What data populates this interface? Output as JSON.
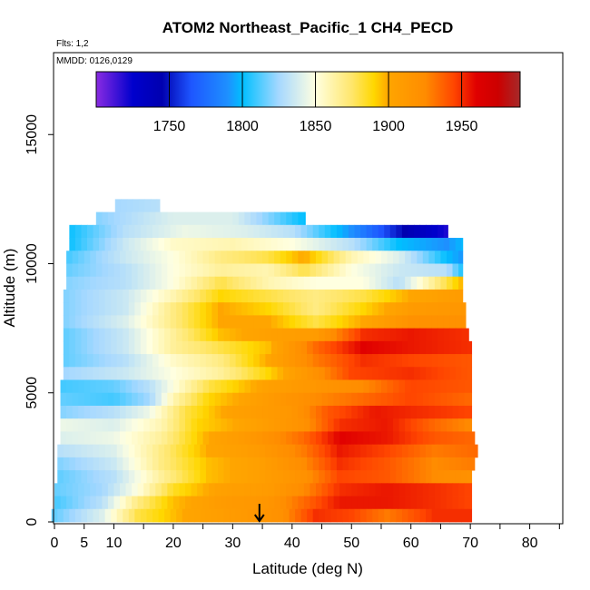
{
  "chart_data": {
    "type": "heatmap",
    "title": "ATOM2 Northeast_Pacific_1 CH4_PECD",
    "annotations": {
      "flights": "Flts: 1,2",
      "dates": "MMDD: 0126,0129"
    },
    "xlabel": "Latitude (deg N)",
    "ylabel": "Altitude (m)",
    "xlim": [
      0,
      85
    ],
    "ylim": [
      0,
      17500
    ],
    "x_ticks": [
      0,
      5,
      10,
      15,
      20,
      25,
      30,
      35,
      40,
      45,
      50,
      55,
      60,
      65,
      70,
      75,
      80,
      85
    ],
    "x_tick_labels": [
      "0",
      "5",
      "10",
      "20",
      "30",
      "40",
      "50",
      "60",
      "70",
      "80"
    ],
    "x_tick_label_values": [
      0,
      5,
      10,
      20,
      30,
      40,
      50,
      60,
      70,
      80
    ],
    "y_ticks": [
      0,
      5000,
      10000,
      15000
    ],
    "y_tick_labels": [
      "0",
      "5000",
      "10000",
      "15000"
    ],
    "marker": {
      "type": "arrow",
      "latitude": 34.5,
      "altitude": 0
    },
    "colorbar": {
      "range": [
        1700,
        1990
      ],
      "ticks": [
        1750,
        1800,
        1850,
        1900,
        1950
      ],
      "tick_labels": [
        "1750",
        "1800",
        "1850",
        "1900",
        "1950"
      ],
      "stops": [
        [
          1700,
          "#8a2be2"
        ],
        [
          1725,
          "#0000cd"
        ],
        [
          1745,
          "#0000b0"
        ],
        [
          1765,
          "#1e56ff"
        ],
        [
          1790,
          "#1e90ff"
        ],
        [
          1800,
          "#00bfff"
        ],
        [
          1825,
          "#a6d8ff"
        ],
        [
          1850,
          "#ffffe0"
        ],
        [
          1875,
          "#ffe66b"
        ],
        [
          1890,
          "#ffd700"
        ],
        [
          1900,
          "#ffa500"
        ],
        [
          1925,
          "#ff8c00"
        ],
        [
          1945,
          "#ff4500"
        ],
        [
          1960,
          "#e00000"
        ],
        [
          1975,
          "#cc0000"
        ],
        [
          1990,
          "#a52a2a"
        ]
      ]
    },
    "bands": [
      {
        "alt": 12000,
        "lat_min": 10.2,
        "lat_max": 17.7,
        "anchors": [
          [
            10,
            1825
          ],
          [
            18,
            1830
          ]
        ]
      },
      {
        "alt": 11500,
        "lat_min": 7.0,
        "lat_max": 42.2,
        "anchors": [
          [
            7,
            1820
          ],
          [
            20,
            1840
          ],
          [
            30,
            1840
          ],
          [
            36,
            1820
          ],
          [
            42,
            1800
          ]
        ]
      },
      {
        "alt": 11000,
        "lat_min": 2.5,
        "lat_max": 66.2,
        "anchors": [
          [
            2,
            1800
          ],
          [
            12,
            1830
          ],
          [
            22,
            1845
          ],
          [
            32,
            1840
          ],
          [
            40,
            1830
          ],
          [
            50,
            1790
          ],
          [
            60,
            1740
          ],
          [
            66,
            1720
          ]
        ]
      },
      {
        "alt": 10500,
        "lat_min": 2.5,
        "lat_max": 68.7,
        "anchors": [
          [
            2,
            1800
          ],
          [
            12,
            1835
          ],
          [
            20,
            1855
          ],
          [
            30,
            1860
          ],
          [
            40,
            1850
          ],
          [
            50,
            1830
          ],
          [
            58,
            1800
          ],
          [
            66,
            1790
          ],
          [
            69,
            1800
          ]
        ]
      },
      {
        "alt": 10000,
        "lat_min": 2.0,
        "lat_max": 68.7,
        "anchors": [
          [
            2,
            1810
          ],
          [
            12,
            1835
          ],
          [
            20,
            1850
          ],
          [
            28,
            1870
          ],
          [
            36,
            1880
          ],
          [
            42,
            1900
          ],
          [
            50,
            1860
          ],
          [
            58,
            1840
          ],
          [
            66,
            1800
          ],
          [
            69,
            1790
          ]
        ]
      },
      {
        "alt": 9500,
        "lat_min": 2.0,
        "lat_max": 68.7,
        "anchors": [
          [
            2,
            1815
          ],
          [
            12,
            1830
          ],
          [
            20,
            1850
          ],
          [
            28,
            1865
          ],
          [
            36,
            1860
          ],
          [
            42,
            1880
          ],
          [
            50,
            1850
          ],
          [
            58,
            1835
          ],
          [
            66,
            1830
          ],
          [
            69,
            1800
          ]
        ]
      },
      {
        "alt": 9000,
        "lat_min": 2.0,
        "lat_max": 68.7,
        "anchors": [
          [
            2,
            1820
          ],
          [
            12,
            1830
          ],
          [
            20,
            1850
          ],
          [
            28,
            1880
          ],
          [
            36,
            1860
          ],
          [
            44,
            1850
          ],
          [
            52,
            1850
          ],
          [
            58,
            1830
          ],
          [
            66,
            1880
          ],
          [
            69,
            1900
          ]
        ]
      },
      {
        "alt": 8500,
        "lat_min": 1.5,
        "lat_max": 68.7,
        "anchors": [
          [
            2,
            1820
          ],
          [
            12,
            1835
          ],
          [
            20,
            1860
          ],
          [
            28,
            1890
          ],
          [
            36,
            1880
          ],
          [
            44,
            1870
          ],
          [
            52,
            1880
          ],
          [
            60,
            1900
          ],
          [
            69,
            1910
          ]
        ]
      },
      {
        "alt": 8000,
        "lat_min": 1.5,
        "lat_max": 69.2,
        "anchors": [
          [
            2,
            1820
          ],
          [
            12,
            1835
          ],
          [
            20,
            1870
          ],
          [
            28,
            1900
          ],
          [
            36,
            1890
          ],
          [
            44,
            1870
          ],
          [
            52,
            1890
          ],
          [
            60,
            1910
          ],
          [
            69,
            1915
          ]
        ]
      },
      {
        "alt": 7500,
        "lat_min": 1.5,
        "lat_max": 69.2,
        "anchors": [
          [
            2,
            1820
          ],
          [
            12,
            1840
          ],
          [
            20,
            1870
          ],
          [
            28,
            1900
          ],
          [
            36,
            1900
          ],
          [
            44,
            1880
          ],
          [
            52,
            1900
          ],
          [
            60,
            1920
          ],
          [
            69,
            1920
          ]
        ]
      },
      {
        "alt": 7000,
        "lat_min": 1.5,
        "lat_max": 69.7,
        "anchors": [
          [
            2,
            1815
          ],
          [
            12,
            1835
          ],
          [
            20,
            1865
          ],
          [
            28,
            1895
          ],
          [
            36,
            1905
          ],
          [
            44,
            1910
          ],
          [
            52,
            1950
          ],
          [
            60,
            1955
          ],
          [
            69,
            1950
          ]
        ]
      },
      {
        "alt": 6500,
        "lat_min": 1.5,
        "lat_max": 70.2,
        "anchors": [
          [
            2,
            1815
          ],
          [
            12,
            1835
          ],
          [
            20,
            1865
          ],
          [
            28,
            1880
          ],
          [
            36,
            1895
          ],
          [
            44,
            1935
          ],
          [
            52,
            1960
          ],
          [
            60,
            1955
          ],
          [
            70,
            1950
          ]
        ]
      },
      {
        "alt": 6000,
        "lat_min": 1.5,
        "lat_max": 70.2,
        "anchors": [
          [
            2,
            1815
          ],
          [
            12,
            1830
          ],
          [
            20,
            1855
          ],
          [
            28,
            1870
          ],
          [
            36,
            1900
          ],
          [
            44,
            1930
          ],
          [
            52,
            1950
          ],
          [
            60,
            1945
          ],
          [
            70,
            1940
          ]
        ]
      },
      {
        "alt": 5500,
        "lat_min": 1.5,
        "lat_max": 70.2,
        "anchors": [
          [
            2,
            1825
          ],
          [
            12,
            1835
          ],
          [
            20,
            1850
          ],
          [
            28,
            1865
          ],
          [
            36,
            1890
          ],
          [
            44,
            1920
          ],
          [
            50,
            1945
          ],
          [
            60,
            1950
          ],
          [
            70,
            1940
          ]
        ]
      },
      {
        "alt": 5000,
        "lat_min": 1.0,
        "lat_max": 70.2,
        "anchors": [
          [
            1,
            1810
          ],
          [
            10,
            1815
          ],
          [
            16,
            1830
          ],
          [
            20,
            1850
          ],
          [
            26,
            1880
          ],
          [
            36,
            1905
          ],
          [
            44,
            1915
          ],
          [
            52,
            1925
          ],
          [
            60,
            1945
          ],
          [
            70,
            1940
          ]
        ]
      },
      {
        "alt": 4500,
        "lat_min": 1.0,
        "lat_max": 70.2,
        "anchors": [
          [
            1,
            1815
          ],
          [
            10,
            1810
          ],
          [
            16,
            1825
          ],
          [
            20,
            1860
          ],
          [
            26,
            1890
          ],
          [
            36,
            1910
          ],
          [
            44,
            1925
          ],
          [
            52,
            1935
          ],
          [
            60,
            1945
          ],
          [
            70,
            1935
          ]
        ]
      },
      {
        "alt": 4000,
        "lat_min": 1.0,
        "lat_max": 70.2,
        "anchors": [
          [
            1,
            1820
          ],
          [
            10,
            1830
          ],
          [
            16,
            1845
          ],
          [
            22,
            1880
          ],
          [
            30,
            1905
          ],
          [
            40,
            1915
          ],
          [
            46,
            1940
          ],
          [
            54,
            1955
          ],
          [
            62,
            1950
          ],
          [
            70,
            1945
          ]
        ]
      },
      {
        "alt": 3500,
        "lat_min": 1.0,
        "lat_max": 70.2,
        "anchors": [
          [
            1,
            1845
          ],
          [
            10,
            1840
          ],
          [
            18,
            1860
          ],
          [
            24,
            1890
          ],
          [
            34,
            1905
          ],
          [
            42,
            1920
          ],
          [
            48,
            1950
          ],
          [
            56,
            1955
          ],
          [
            64,
            1935
          ],
          [
            70,
            1925
          ]
        ]
      },
      {
        "alt": 3000,
        "lat_min": 1.0,
        "lat_max": 70.7,
        "anchors": [
          [
            1,
            1840
          ],
          [
            10,
            1845
          ],
          [
            18,
            1865
          ],
          [
            26,
            1900
          ],
          [
            34,
            1915
          ],
          [
            42,
            1935
          ],
          [
            48,
            1960
          ],
          [
            56,
            1955
          ],
          [
            64,
            1940
          ],
          [
            71,
            1935
          ]
        ]
      },
      {
        "alt": 2500,
        "lat_min": 0.5,
        "lat_max": 71.2,
        "anchors": [
          [
            1,
            1830
          ],
          [
            10,
            1840
          ],
          [
            18,
            1870
          ],
          [
            26,
            1900
          ],
          [
            34,
            1910
          ],
          [
            42,
            1930
          ],
          [
            48,
            1955
          ],
          [
            56,
            1945
          ],
          [
            64,
            1930
          ],
          [
            71,
            1935
          ]
        ]
      },
      {
        "alt": 2000,
        "lat_min": 0.5,
        "lat_max": 70.7,
        "anchors": [
          [
            1,
            1820
          ],
          [
            10,
            1835
          ],
          [
            18,
            1870
          ],
          [
            26,
            1895
          ],
          [
            34,
            1905
          ],
          [
            42,
            1925
          ],
          [
            48,
            1950
          ],
          [
            56,
            1940
          ],
          [
            64,
            1925
          ],
          [
            71,
            1930
          ]
        ]
      },
      {
        "alt": 1500,
        "lat_min": 0.5,
        "lat_max": 70.2,
        "anchors": [
          [
            1,
            1815
          ],
          [
            10,
            1830
          ],
          [
            18,
            1865
          ],
          [
            26,
            1895
          ],
          [
            34,
            1905
          ],
          [
            42,
            1920
          ],
          [
            48,
            1945
          ],
          [
            56,
            1940
          ],
          [
            64,
            1925
          ],
          [
            70,
            1920
          ]
        ]
      },
      {
        "alt": 1000,
        "lat_min": 0.0,
        "lat_max": 70.2,
        "anchors": [
          [
            0,
            1815
          ],
          [
            8,
            1825
          ],
          [
            14,
            1850
          ],
          [
            20,
            1885
          ],
          [
            28,
            1905
          ],
          [
            36,
            1910
          ],
          [
            42,
            1925
          ],
          [
            48,
            1950
          ],
          [
            56,
            1955
          ],
          [
            64,
            1950
          ],
          [
            70,
            1945
          ]
        ]
      },
      {
        "alt": 500,
        "lat_min": 0.0,
        "lat_max": 70.2,
        "anchors": [
          [
            0,
            1810
          ],
          [
            8,
            1830
          ],
          [
            14,
            1870
          ],
          [
            20,
            1895
          ],
          [
            28,
            1910
          ],
          [
            36,
            1915
          ],
          [
            42,
            1935
          ],
          [
            48,
            1955
          ],
          [
            56,
            1955
          ],
          [
            64,
            1950
          ],
          [
            70,
            1945
          ]
        ]
      },
      {
        "alt": 0,
        "lat_min": -0.5,
        "lat_max": 70.2,
        "anchors": [
          [
            0,
            1815
          ],
          [
            8,
            1840
          ],
          [
            14,
            1880
          ],
          [
            22,
            1900
          ],
          [
            30,
            1910
          ],
          [
            38,
            1920
          ],
          [
            44,
            1950
          ],
          [
            50,
            1945
          ],
          [
            56,
            1930
          ],
          [
            64,
            1950
          ],
          [
            70,
            1950
          ]
        ]
      }
    ]
  }
}
